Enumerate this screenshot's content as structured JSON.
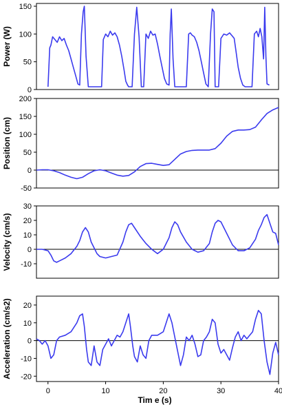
{
  "figure": {
    "xlabel": "Tim e (s)",
    "xticks": [
      "0",
      "10",
      "20",
      "30",
      "40"
    ]
  },
  "chart_data": [
    {
      "type": "line",
      "ylabel": "Power (W)",
      "xlim": [
        -2,
        40
      ],
      "ylim": [
        0,
        155
      ],
      "yticks": [
        0,
        50,
        100,
        150
      ],
      "series_color": "#3a3aee",
      "x": [
        0,
        0.3,
        0.5,
        0.8,
        1.2,
        1.6,
        2.0,
        2.4,
        2.8,
        3.2,
        3.6,
        4.0,
        4.4,
        4.8,
        5.2,
        5.5,
        5.8,
        6.1,
        6.3,
        6.6,
        7.0,
        7.5,
        8.0,
        8.5,
        9.0,
        9.3,
        9.6,
        10.0,
        10.4,
        10.8,
        11.2,
        11.6,
        12.0,
        12.4,
        12.8,
        13.2,
        13.5,
        13.8,
        14.0,
        14.3,
        14.6,
        15.0,
        15.4,
        15.8,
        16.2,
        16.6,
        17.0,
        17.4,
        17.8,
        18.2,
        18.6,
        19.0,
        19.4,
        19.8,
        20.2,
        20.6,
        21.0,
        21.2,
        21.4,
        21.7,
        22.0,
        22.5,
        23.0,
        23.5,
        24.0,
        24.4,
        24.7,
        25.0,
        25.4,
        25.8,
        26.2,
        26.6,
        27.0,
        27.4,
        27.8,
        28.2,
        28.5,
        28.8,
        29.0,
        29.3,
        29.6,
        30.0,
        30.5,
        31.0,
        31.5,
        32.0,
        32.3,
        32.6,
        33.0,
        33.4,
        33.8,
        34.2,
        34.6,
        35.0,
        35.4,
        35.8,
        36.2,
        36.5,
        36.8,
        37.1,
        37.4,
        37.6,
        37.8,
        38.0,
        38.4
      ],
      "y": [
        5,
        75,
        80,
        95,
        90,
        85,
        95,
        88,
        92,
        80,
        70,
        55,
        40,
        25,
        10,
        8,
        100,
        140,
        150,
        60,
        5,
        5,
        5,
        5,
        5,
        5,
        90,
        100,
        95,
        105,
        98,
        102,
        95,
        80,
        60,
        35,
        15,
        8,
        5,
        5,
        5,
        100,
        148,
        95,
        5,
        5,
        100,
        92,
        105,
        98,
        100,
        82,
        60,
        40,
        20,
        10,
        8,
        100,
        145,
        55,
        5,
        5,
        5,
        5,
        5,
        100,
        102,
        98,
        95,
        85,
        70,
        50,
        30,
        10,
        5,
        100,
        145,
        140,
        5,
        5,
        5,
        92,
        100,
        98,
        102,
        96,
        92,
        70,
        40,
        20,
        8,
        5,
        5,
        5,
        5,
        100,
        105,
        95,
        110,
        95,
        55,
        148,
        60,
        10,
        8
      ]
    },
    {
      "type": "line",
      "ylabel": "Position (cm)",
      "xlim": [
        -2,
        40
      ],
      "ylim": [
        -50,
        200
      ],
      "yticks": [
        -50,
        0,
        50,
        100,
        150,
        200
      ],
      "series_color": "#3a3aee",
      "x": [
        -2,
        -1,
        0,
        1,
        2,
        3,
        4,
        5,
        6,
        7,
        8,
        9,
        10,
        11,
        12,
        13,
        14,
        15,
        16,
        17,
        18,
        19,
        20,
        21,
        22,
        23,
        24,
        25,
        26,
        27,
        28,
        29,
        30,
        31,
        32,
        33,
        34,
        35,
        36,
        37,
        38,
        39,
        40
      ],
      "y": [
        0,
        1,
        1,
        -2,
        -7,
        -14,
        -20,
        -24,
        -20,
        -10,
        -2,
        1,
        -2,
        -8,
        -14,
        -17,
        -15,
        -5,
        10,
        18,
        19,
        16,
        13,
        15,
        30,
        45,
        52,
        55,
        56,
        56,
        56,
        60,
        75,
        95,
        108,
        112,
        112,
        113,
        120,
        140,
        158,
        168,
        175
      ]
    },
    {
      "type": "line",
      "ylabel": "Velocity (cm/s)",
      "xlim": [
        -2,
        40
      ],
      "ylim": [
        -20,
        30
      ],
      "yticks": [
        -10,
        0,
        10,
        20,
        30
      ],
      "series_color": "#3a3aee",
      "x": [
        -2,
        -1,
        0,
        0.5,
        1,
        1.5,
        2,
        3,
        4,
        5,
        5.5,
        6,
        6.5,
        7,
        7.5,
        8,
        8.5,
        9,
        10,
        11,
        12,
        13,
        13.5,
        14,
        14.5,
        15,
        16,
        17,
        18,
        19,
        20,
        21,
        21.5,
        22,
        22.5,
        23,
        24,
        25,
        26,
        27,
        28,
        28.5,
        29,
        29.5,
        30,
        31,
        32,
        33,
        34,
        35,
        36,
        36.5,
        37,
        37.5,
        38,
        38.5,
        39,
        39.5,
        40
      ],
      "y": [
        0,
        0,
        -1,
        -4,
        -8,
        -9,
        -8,
        -6,
        -3,
        2,
        6,
        12,
        15,
        12,
        5,
        1,
        -3,
        -5,
        -6,
        -5,
        -4,
        5,
        12,
        17,
        18,
        15,
        9,
        4,
        0,
        -3,
        0,
        8,
        15,
        19,
        17,
        12,
        5,
        0,
        -2,
        -1,
        4,
        12,
        18,
        20,
        19,
        11,
        3,
        -1,
        -1,
        1,
        7,
        13,
        17,
        22,
        24,
        18,
        12,
        11,
        3
      ]
    },
    {
      "type": "line",
      "ylabel": "Acceleration (cm/s2)",
      "xlim": [
        -2,
        40
      ],
      "ylim": [
        -23,
        25
      ],
      "yticks": [
        -20,
        -10,
        0,
        10,
        20
      ],
      "series_color": "#3a3aee",
      "x": [
        -2,
        -1.5,
        -1,
        -0.5,
        0,
        0.5,
        1,
        1.5,
        2,
        3,
        4,
        5,
        5.5,
        6,
        6.3,
        6.7,
        7,
        7.5,
        8,
        8.5,
        9,
        9.5,
        10,
        10.5,
        11,
        11.5,
        12,
        12.5,
        13,
        13.5,
        14,
        14.3,
        14.7,
        15,
        15.5,
        16,
        16.5,
        17,
        17.5,
        18,
        18.5,
        19,
        19.5,
        20,
        20.5,
        21,
        21.5,
        22,
        22.5,
        23,
        23.5,
        24,
        24.5,
        25,
        25.5,
        26,
        26.5,
        27,
        27.5,
        28,
        28.5,
        29,
        29.5,
        30,
        30.5,
        31,
        31.5,
        32,
        32.5,
        33,
        33.5,
        34,
        34.5,
        35,
        35.5,
        36,
        36.5,
        37,
        37.5,
        38,
        38.5,
        39,
        39.5,
        40
      ],
      "y": [
        1,
        0,
        -2,
        0,
        -3,
        -10,
        -8,
        0,
        2,
        3,
        5,
        10,
        14,
        15,
        8,
        -5,
        -12,
        -14,
        -3,
        -12,
        -14,
        -5,
        -2,
        1,
        -3,
        0,
        3,
        2,
        5,
        10,
        15,
        8,
        -3,
        -9,
        -12,
        -3,
        -8,
        -10,
        0,
        3,
        3,
        3,
        4,
        5,
        10,
        15,
        10,
        2,
        -6,
        -14,
        -8,
        2,
        0,
        3,
        -2,
        -9,
        -8,
        0,
        2,
        5,
        12,
        10,
        -2,
        -7,
        -5,
        -8,
        -11,
        -4,
        2,
        5,
        0,
        3,
        1,
        3,
        5,
        12,
        17,
        15,
        0,
        -12,
        -19,
        -7,
        -1,
        -8
      ]
    }
  ]
}
